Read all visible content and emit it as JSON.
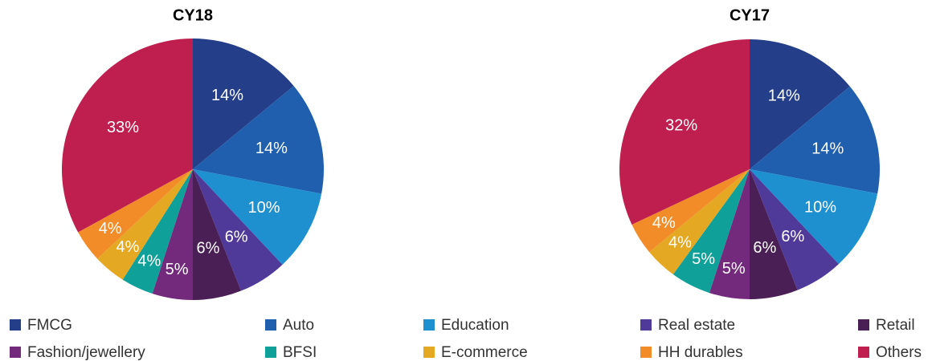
{
  "chart_data": [
    {
      "type": "pie",
      "title": "CY18",
      "categories": [
        "FMCG",
        "Auto",
        "Education",
        "Real estate",
        "Retail",
        "Fashion/jewellery",
        "BFSI",
        "E-commerce",
        "HH durables",
        "Others"
      ],
      "values": [
        14,
        14,
        10,
        6,
        6,
        5,
        4,
        4,
        4,
        33
      ],
      "value_labels": [
        "14%",
        "14%",
        "10%",
        "6%",
        "6%",
        "5%",
        "4%",
        "4%",
        "4%",
        "33%"
      ],
      "colors": [
        "#253e8a",
        "#1f5fad",
        "#1e90d0",
        "#4f3a9a",
        "#4a1f55",
        "#742a7c",
        "#0fa09a",
        "#e5a823",
        "#f28c28",
        "#bf1f4e"
      ],
      "legend": "bottom"
    },
    {
      "type": "pie",
      "title": "CY17",
      "categories": [
        "FMCG",
        "Auto",
        "Education",
        "Real estate",
        "Retail",
        "Fashion/jewellery",
        "BFSI",
        "E-commerce",
        "HH durables",
        "Others"
      ],
      "values": [
        14,
        14,
        10,
        6,
        6,
        5,
        5,
        4,
        4,
        32
      ],
      "value_labels": [
        "14%",
        "14%",
        "10%",
        "6%",
        "6%",
        "5%",
        "5%",
        "4%",
        "4%",
        "32%"
      ],
      "colors": [
        "#253e8a",
        "#1f5fad",
        "#1e90d0",
        "#4f3a9a",
        "#4a1f55",
        "#742a7c",
        "#0fa09a",
        "#e5a823",
        "#f28c28",
        "#bf1f4e"
      ]
    }
  ]
}
